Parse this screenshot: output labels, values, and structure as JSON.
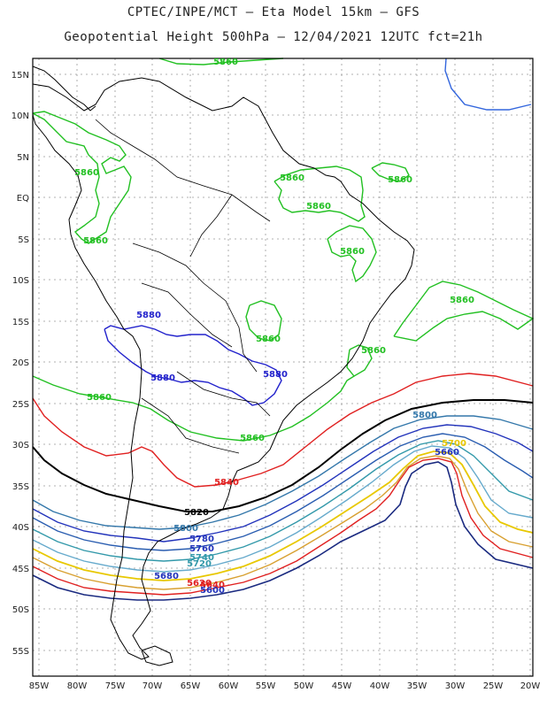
{
  "title": {
    "line1": "CPTEC/INPE/MCT –  Eta Model 15km – GFS",
    "line2": "Geopotential Height 500hPa – 12/04/2021 12UTC fct=21h"
  },
  "lat_labels": [
    "15N",
    "10N",
    "5N",
    "EQ",
    "5S",
    "10S",
    "15S",
    "20S",
    "25S",
    "30S",
    "35S",
    "40S",
    "45S",
    "50S",
    "55S"
  ],
  "lon_labels": [
    "85W",
    "80W",
    "75W",
    "70W",
    "65W",
    "60W",
    "55W",
    "50W",
    "45W",
    "40W",
    "35W",
    "30W",
    "25W",
    "20W"
  ],
  "contour_labels": [
    {
      "id": "green-top",
      "text": "5860",
      "color": "#22c022"
    },
    {
      "id": "green-ne",
      "text": "5860",
      "color": "#22c022"
    },
    {
      "id": "green-amazon1",
      "text": "5860",
      "color": "#22c022"
    },
    {
      "id": "green-amazon2",
      "text": "5860",
      "color": "#22c022"
    },
    {
      "id": "green-west1",
      "text": "5860",
      "color": "#22c022"
    },
    {
      "id": "green-west2",
      "text": "5860",
      "color": "#22c022"
    },
    {
      "id": "green-brazil-ne",
      "text": "5860",
      "color": "#22c022"
    },
    {
      "id": "green-atlantic",
      "text": "5860",
      "color": "#22c022"
    },
    {
      "id": "green-central",
      "text": "5860",
      "color": "#22c022"
    },
    {
      "id": "green-se",
      "text": "5860",
      "color": "#22c022"
    },
    {
      "id": "green-chile",
      "text": "5860",
      "color": "#22c022"
    },
    {
      "id": "green-south",
      "text": "5860",
      "color": "#22c022"
    },
    {
      "id": "blue-1",
      "text": "5880",
      "color": "#2222cc"
    },
    {
      "id": "blue-2",
      "text": "5880",
      "color": "#2222cc"
    },
    {
      "id": "blue-3",
      "text": "5880",
      "color": "#2222cc"
    },
    {
      "id": "red-1",
      "text": "5840",
      "color": "#e02020"
    },
    {
      "id": "black-1",
      "text": "5820",
      "color": "#000000"
    },
    {
      "id": "steel-1",
      "text": "5800",
      "color": "#3377aa"
    },
    {
      "id": "steel-2",
      "text": "5800",
      "color": "#3377aa"
    },
    {
      "id": "navy-1",
      "text": "5780",
      "color": "#2233bb"
    },
    {
      "id": "navy-2",
      "text": "5760",
      "color": "#2233bb"
    },
    {
      "id": "cyan-1",
      "text": "5740",
      "color": "#3399aa"
    },
    {
      "id": "cyan-2",
      "text": "5720",
      "color": "#3399aa"
    },
    {
      "id": "yellow-1",
      "text": "5700",
      "color": "#e8c800"
    },
    {
      "id": "navy-3",
      "text": "5660",
      "color": "#2233bb"
    },
    {
      "id": "navy-4",
      "text": "5680",
      "color": "#2233bb"
    },
    {
      "id": "red-2",
      "text": "5640",
      "color": "#e02020"
    },
    {
      "id": "red-3",
      "text": "5620",
      "color": "#e02020"
    },
    {
      "id": "navy-5",
      "text": "5600",
      "color": "#2233bb"
    }
  ],
  "colors": {
    "frame": "#000000",
    "grid": "#888888",
    "coast": "#000000",
    "c5900": "#3366dd",
    "c5880": "#2222cc",
    "c5860": "#22c022",
    "c5840": "#e02020",
    "c5820": "#000000",
    "c5800": "#3377aa",
    "c5780": "#2233bb",
    "c5760": "#2a5db0",
    "c5740": "#3399aa",
    "c5720": "#66aacc",
    "c5700": "#e8c800",
    "c5680": "#d8a030",
    "c5660": "#e02020",
    "c5640": "#1a2a80"
  }
}
